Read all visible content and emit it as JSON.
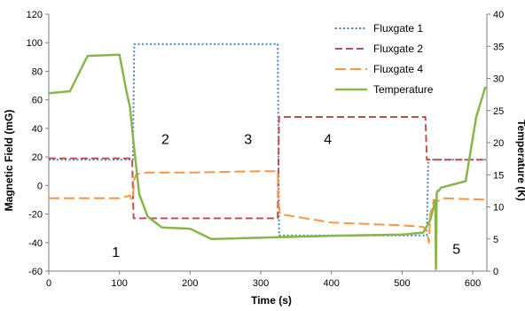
{
  "chart_data": {
    "type": "line",
    "title": "",
    "xlabel": "Time (s)",
    "ylabel": "Magnetic Field (mG)",
    "y2label": "Temperature (K)",
    "xlim": [
      0,
      620
    ],
    "ylim": [
      -60,
      120
    ],
    "y2lim": [
      0,
      40
    ],
    "x_ticks": [
      0,
      100,
      200,
      300,
      400,
      500,
      600
    ],
    "y_ticks": [
      -60,
      -40,
      -20,
      0,
      20,
      40,
      60,
      80,
      100,
      120
    ],
    "y2_ticks": [
      0,
      5,
      10,
      15,
      20,
      25,
      30,
      35,
      40
    ],
    "grid": false,
    "legend_position": "top-right",
    "series": [
      {
        "name": "Fluxgate 1",
        "axis": "left",
        "color": "#4f81bd",
        "dash": "2,2.5",
        "x": [
          0,
          119,
          121,
          324,
          326,
          535,
          537,
          620
        ],
        "y": [
          18,
          18,
          99,
          99,
          -35,
          -35,
          18,
          18
        ]
      },
      {
        "name": "Fluxgate 2",
        "axis": "left",
        "color": "#c0504d",
        "dash": "8,4",
        "x": [
          0,
          118,
          120,
          324,
          326,
          533,
          535,
          620
        ],
        "y": [
          19,
          19,
          -23,
          -23,
          48,
          48,
          18,
          18
        ]
      },
      {
        "name": "Fluxgate 4",
        "axis": "left",
        "color": "#f79646",
        "dash": "12,5",
        "x": [
          0,
          100,
          115,
          117,
          119,
          121,
          124,
          140,
          200,
          300,
          320,
          324,
          325,
          327,
          400,
          500,
          530,
          535,
          538,
          540,
          545,
          550,
          560,
          620
        ],
        "y": [
          -9,
          -9,
          -7,
          -10,
          -9,
          4,
          8,
          9,
          9,
          10,
          10,
          10,
          -10,
          -20,
          -26,
          -28,
          -29,
          -32,
          -40,
          -20,
          -10,
          -11,
          -9,
          -10
        ]
      },
      {
        "name": "Temperature",
        "axis": "right",
        "color": "#8ab54a",
        "dash": "",
        "x": [
          0,
          30,
          55,
          100,
          110,
          115,
          120,
          128,
          140,
          160,
          200,
          230,
          300,
          400,
          500,
          530,
          540,
          547,
          548,
          549,
          550,
          552,
          555,
          590,
          605,
          618
        ],
        "y": [
          27.7,
          28.0,
          33.5,
          33.7,
          28.0,
          25.5,
          20.0,
          12.0,
          8.5,
          6.8,
          6.6,
          5.0,
          5.2,
          5.5,
          5.7,
          6.0,
          8.0,
          11.0,
          0.3,
          12.0,
          12.5,
          12.5,
          13.0,
          14.0,
          24.0,
          28.7
        ]
      }
    ],
    "annotations": [
      {
        "text": "1",
        "x": 95,
        "y": -50
      },
      {
        "text": "2",
        "x": 165,
        "y": 29
      },
      {
        "text": "3",
        "x": 282,
        "y": 29
      },
      {
        "text": "4",
        "x": 395,
        "y": 29
      },
      {
        "text": "5",
        "x": 577,
        "y": -48
      }
    ]
  }
}
